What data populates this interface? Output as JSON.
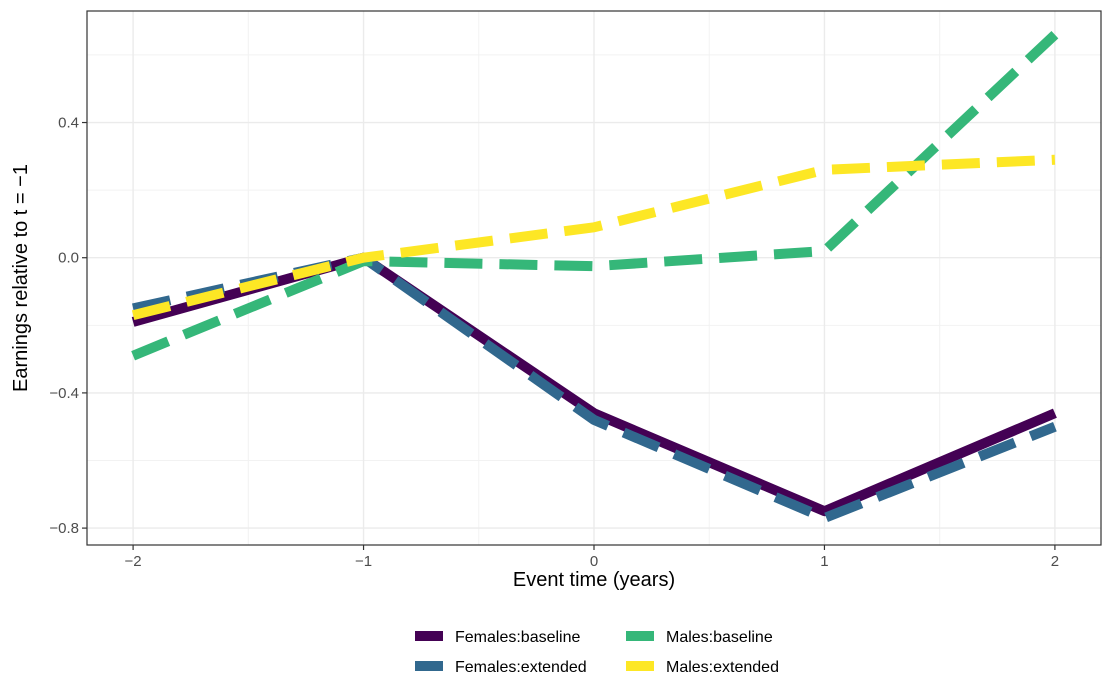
{
  "chart_data": {
    "type": "line",
    "title": "",
    "xlabel": "Event time (years)",
    "ylabel": "Earnings relative to t = −1",
    "x": [
      -2,
      -1,
      0,
      1,
      2
    ],
    "xlim": [
      -2.2,
      2.2
    ],
    "ylim": [
      -0.85,
      0.73
    ],
    "x_ticks": [
      -2,
      -1,
      0,
      1,
      2
    ],
    "x_tick_labels": [
      "−2",
      "−1",
      "0",
      "1",
      "2"
    ],
    "y_ticks": [
      -0.8,
      -0.4,
      0.0,
      0.4
    ],
    "y_tick_labels": [
      "−0.8",
      "−0.4",
      "0.0",
      "0.4"
    ],
    "grid": true,
    "legend_position": "bottom",
    "series": [
      {
        "name": "Females:baseline",
        "values": [
          -0.19,
          0.0,
          -0.46,
          -0.75,
          -0.46
        ],
        "color": "#440154",
        "dash": "solid"
      },
      {
        "name": "Females:extended",
        "values": [
          -0.15,
          0.0,
          -0.48,
          -0.77,
          -0.5
        ],
        "color": "#31688E",
        "dash": "dashed"
      },
      {
        "name": "Males:baseline",
        "values": [
          -0.29,
          -0.01,
          -0.025,
          0.02,
          0.66
        ],
        "color": "#35B779",
        "dash": "dashed"
      },
      {
        "name": "Males:extended",
        "values": [
          -0.17,
          0.0,
          0.09,
          0.26,
          0.29
        ],
        "color": "#FDE725",
        "dash": "dashed"
      }
    ]
  }
}
